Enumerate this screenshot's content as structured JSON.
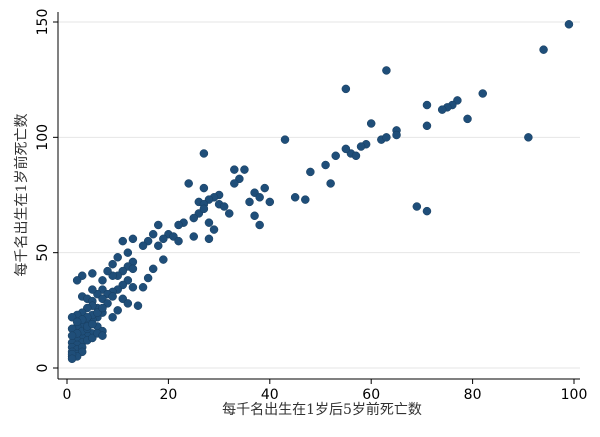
{
  "chart_data": {
    "type": "scatter",
    "title": "",
    "xlabel": "每千名出生在1岁后5岁前死亡数",
    "ylabel": "每千名出生在1岁前死亡数",
    "xlim": [
      0,
      100
    ],
    "ylim": [
      0,
      150
    ],
    "xticks": [
      0,
      20,
      40,
      60,
      80,
      100
    ],
    "yticks": [
      0,
      50,
      100,
      150
    ],
    "grid": true,
    "legend": "none",
    "colors": {
      "point": "#1f4e79"
    },
    "points": [
      [
        99,
        149
      ],
      [
        94,
        138
      ],
      [
        63,
        129
      ],
      [
        55,
        121
      ],
      [
        82,
        119
      ],
      [
        77,
        116
      ],
      [
        76,
        114
      ],
      [
        75,
        113
      ],
      [
        74,
        112
      ],
      [
        71,
        114
      ],
      [
        79,
        108
      ],
      [
        60,
        106
      ],
      [
        71,
        105
      ],
      [
        65,
        103
      ],
      [
        65,
        101
      ],
      [
        62,
        99
      ],
      [
        63,
        100
      ],
      [
        43,
        99
      ],
      [
        91,
        100
      ],
      [
        59,
        97
      ],
      [
        58,
        96
      ],
      [
        56,
        93
      ],
      [
        55,
        95
      ],
      [
        57,
        92
      ],
      [
        53,
        92
      ],
      [
        51,
        88
      ],
      [
        52,
        80
      ],
      [
        48,
        85
      ],
      [
        45,
        74
      ],
      [
        47,
        73
      ],
      [
        69,
        70
      ],
      [
        71,
        68
      ],
      [
        27,
        93
      ],
      [
        33,
        86
      ],
      [
        35,
        86
      ],
      [
        34,
        82
      ],
      [
        24,
        80
      ],
      [
        27,
        78
      ],
      [
        33,
        80
      ],
      [
        39,
        78
      ],
      [
        37,
        76
      ],
      [
        40,
        72
      ],
      [
        36,
        72
      ],
      [
        38,
        74
      ],
      [
        30,
        75
      ],
      [
        29,
        74
      ],
      [
        28,
        73
      ],
      [
        26,
        72
      ],
      [
        27,
        71
      ],
      [
        30,
        71
      ],
      [
        31,
        70
      ],
      [
        32,
        67
      ],
      [
        26,
        67
      ],
      [
        27,
        69
      ],
      [
        25,
        65
      ],
      [
        23,
        63
      ],
      [
        22,
        62
      ],
      [
        28,
        63
      ],
      [
        37,
        66
      ],
      [
        38,
        62
      ],
      [
        29,
        60
      ],
      [
        18,
        62
      ],
      [
        20,
        58
      ],
      [
        21,
        57
      ],
      [
        19,
        56
      ],
      [
        17,
        58
      ],
      [
        16,
        55
      ],
      [
        15,
        53
      ],
      [
        22,
        55
      ],
      [
        25,
        57
      ],
      [
        28,
        56
      ],
      [
        18,
        53
      ],
      [
        13,
        56
      ],
      [
        11,
        55
      ],
      [
        12,
        50
      ],
      [
        19,
        47
      ],
      [
        13,
        46
      ],
      [
        10,
        48
      ],
      [
        9,
        45
      ],
      [
        12,
        44
      ],
      [
        11,
        42
      ],
      [
        13,
        43
      ],
      [
        17,
        43
      ],
      [
        16,
        39
      ],
      [
        10,
        40
      ],
      [
        12,
        38
      ],
      [
        9,
        40
      ],
      [
        8,
        42
      ],
      [
        7,
        38
      ],
      [
        5,
        41
      ],
      [
        3,
        40
      ],
      [
        2,
        38
      ],
      [
        11,
        36
      ],
      [
        13,
        35
      ],
      [
        15,
        35
      ],
      [
        10,
        34
      ],
      [
        9,
        33
      ],
      [
        7,
        34
      ],
      [
        8,
        32
      ],
      [
        6,
        32
      ],
      [
        5,
        34
      ],
      [
        3,
        31
      ],
      [
        4,
        30
      ],
      [
        5,
        29
      ],
      [
        7,
        30
      ],
      [
        9,
        31
      ],
      [
        11,
        30
      ],
      [
        12,
        28
      ],
      [
        14,
        27
      ],
      [
        10,
        25
      ],
      [
        8,
        28
      ],
      [
        6,
        26
      ],
      [
        5,
        27
      ],
      [
        4,
        26
      ],
      [
        3,
        24
      ],
      [
        2,
        23
      ],
      [
        1,
        22
      ],
      [
        9,
        22
      ],
      [
        7,
        24
      ],
      [
        6,
        22
      ],
      [
        5,
        21
      ],
      [
        4,
        20
      ],
      [
        3,
        19
      ],
      [
        2,
        18
      ],
      [
        1,
        17
      ],
      [
        5,
        23
      ],
      [
        6,
        24
      ],
      [
        7,
        26
      ],
      [
        4,
        22
      ],
      [
        3,
        21
      ],
      [
        2,
        20
      ],
      [
        6,
        18
      ],
      [
        7,
        16
      ],
      [
        5,
        15
      ],
      [
        4,
        14
      ],
      [
        3,
        13
      ],
      [
        2,
        12
      ],
      [
        1,
        11
      ],
      [
        3,
        16
      ],
      [
        4,
        17
      ],
      [
        2,
        15
      ],
      [
        1,
        14
      ],
      [
        3,
        11
      ],
      [
        2,
        10
      ],
      [
        1,
        9
      ],
      [
        2,
        8
      ],
      [
        1,
        7
      ],
      [
        2,
        6
      ],
      [
        1,
        5
      ],
      [
        3,
        9
      ],
      [
        4,
        12
      ],
      [
        5,
        13
      ],
      [
        6,
        15
      ],
      [
        7,
        14
      ],
      [
        3,
        7
      ],
      [
        2,
        5
      ],
      [
        1,
        6
      ],
      [
        1,
        4
      ],
      [
        4,
        18
      ],
      [
        5,
        19
      ]
    ]
  }
}
